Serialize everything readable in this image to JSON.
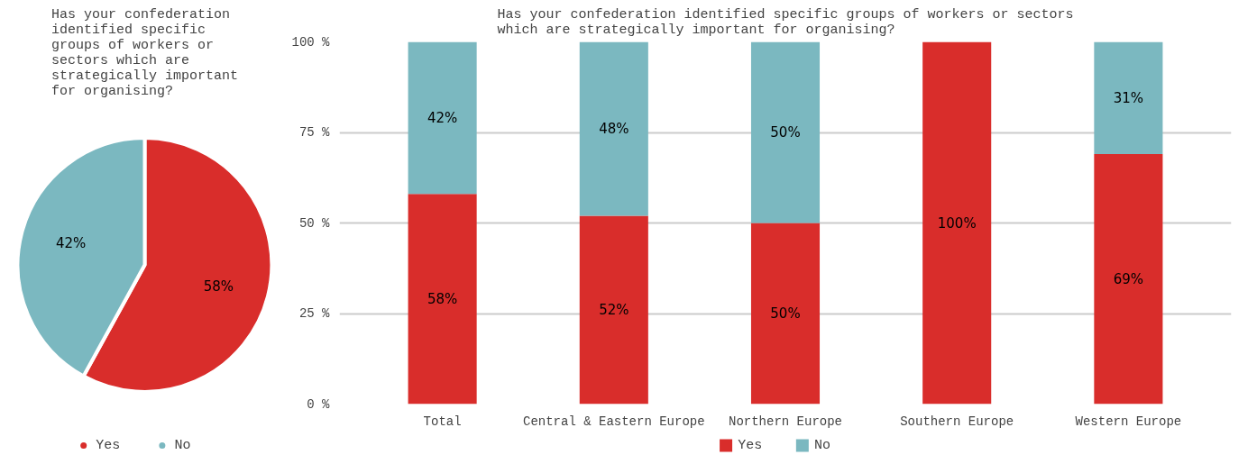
{
  "chart_data": [
    {
      "type": "pie",
      "title": "Has your confederation identified specific groups of workers or sectors which are strategically important for organising?",
      "categories": [
        "Yes",
        "No"
      ],
      "values": [
        58,
        42
      ],
      "colors": [
        "#d92d2b",
        "#7bb8c0"
      ],
      "value_labels": [
        "58%",
        "42%"
      ],
      "legend": "bottom"
    },
    {
      "type": "bar",
      "stacked": true,
      "title": "Has your confederation identified specific groups of workers or sectors which are strategically important for organising?",
      "categories": [
        "Total",
        "Central & Eastern Europe",
        "Northern Europe",
        "Southern Europe",
        "Western Europe"
      ],
      "series": [
        {
          "name": "Yes",
          "color": "#d92d2b",
          "values": [
            58,
            52,
            50,
            100,
            69
          ],
          "value_labels": [
            "58%",
            "52%",
            "50%",
            "100%",
            "69%"
          ]
        },
        {
          "name": "No",
          "color": "#7bb8c0",
          "values": [
            42,
            48,
            50,
            0,
            31
          ],
          "value_labels": [
            "42%",
            "48%",
            "50%",
            null,
            "31%"
          ]
        }
      ],
      "ylim": [
        0,
        100
      ],
      "yticks": [
        {
          "value": 0,
          "label": "0 %"
        },
        {
          "value": 25,
          "label": "25 %"
        },
        {
          "value": 50,
          "label": "50 %"
        },
        {
          "value": 75,
          "label": "75 %"
        },
        {
          "value": 100,
          "label": "100 %"
        }
      ],
      "grid": "y",
      "legend": "bottom"
    }
  ]
}
